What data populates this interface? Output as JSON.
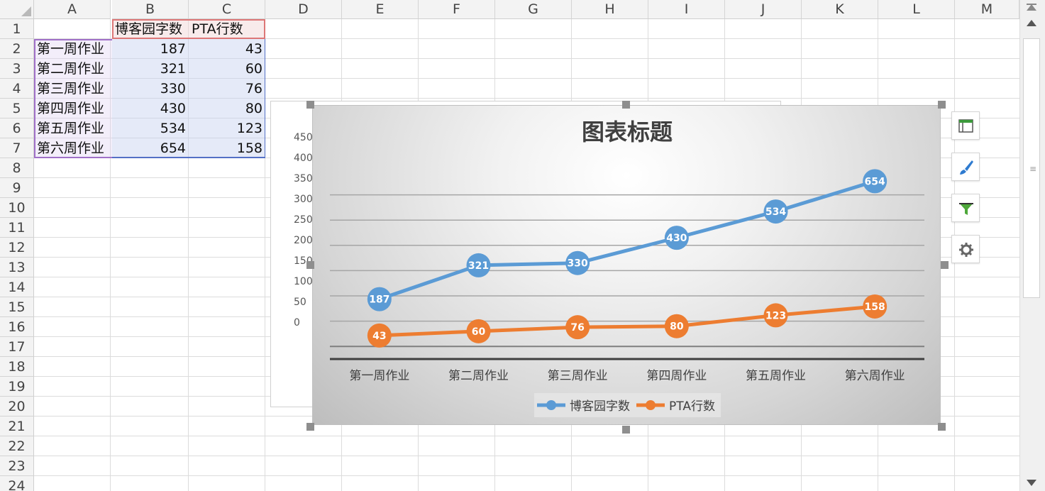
{
  "columns": [
    "A",
    "B",
    "C",
    "D",
    "E",
    "F",
    "G",
    "H",
    "I",
    "J",
    "K",
    "L",
    "M"
  ],
  "rows": [
    "1",
    "2",
    "3",
    "4",
    "5",
    "6",
    "7",
    "8",
    "9",
    "10",
    "11",
    "12",
    "13",
    "14",
    "15",
    "16",
    "17",
    "18",
    "19",
    "20",
    "21",
    "22",
    "23",
    "24"
  ],
  "cells": {
    "B1": "博客园字数",
    "C1": "PTA行数",
    "A2": "第一周作业",
    "B2": "187",
    "C2": "43",
    "A3": "第二周作业",
    "B3": "321",
    "C3": "60",
    "A4": "第三周作业",
    "B4": "330",
    "C4": "76",
    "A5": "第四周作业",
    "B5": "430",
    "C5": "80",
    "A6": "第五周作业",
    "B6": "534",
    "C6": "123",
    "A7": "第六周作业",
    "B7": "654",
    "C7": "158"
  },
  "ghost_chart_ticks": [
    "450",
    "400",
    "350",
    "300",
    "250",
    "200",
    "150",
    "100",
    "50",
    "0"
  ],
  "side_buttons": [
    {
      "name": "chart-elements-button",
      "icon": "chart-elements-icon"
    },
    {
      "name": "chart-style-button",
      "icon": "brush-icon"
    },
    {
      "name": "chart-filter-button",
      "icon": "filter-icon"
    },
    {
      "name": "chart-settings-button",
      "icon": "gear-icon"
    }
  ],
  "chart_data": {
    "type": "line",
    "title": "图表标题",
    "categories": [
      "第一周作业",
      "第二周作业",
      "第三周作业",
      "第四周作业",
      "第五周作业",
      "第六周作业"
    ],
    "series": [
      {
        "name": "博客园字数",
        "values": [
          187,
          321,
          330,
          430,
          534,
          654
        ],
        "color": "#5b9bd5"
      },
      {
        "name": "PTA行数",
        "values": [
          43,
          60,
          76,
          80,
          123,
          158
        ],
        "color": "#ed7d31"
      }
    ],
    "data_labels": true,
    "legend": "bottom",
    "grid": true
  }
}
